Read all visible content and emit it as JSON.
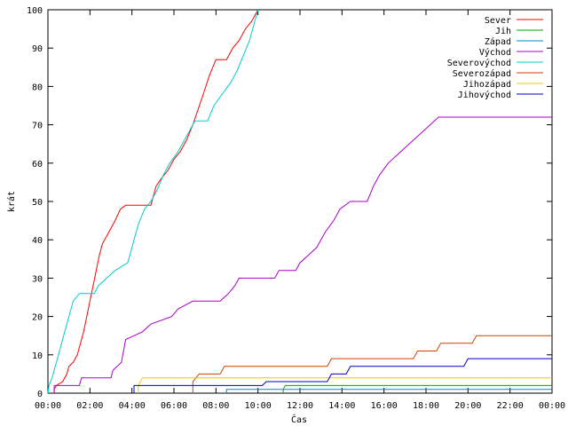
{
  "chart_data": {
    "type": "line",
    "title": "",
    "xlabel": "Čas",
    "ylabel": "krát",
    "xlim": [
      0,
      24
    ],
    "ylim": [
      0,
      100
    ],
    "x_ticks": [
      {
        "v": 0,
        "label": "00:00"
      },
      {
        "v": 2,
        "label": "02:00"
      },
      {
        "v": 4,
        "label": "04:00"
      },
      {
        "v": 6,
        "label": "06:00"
      },
      {
        "v": 8,
        "label": "08:00"
      },
      {
        "v": 10,
        "label": "10:00"
      },
      {
        "v": 12,
        "label": "12:00"
      },
      {
        "v": 14,
        "label": "14:00"
      },
      {
        "v": 16,
        "label": "16:00"
      },
      {
        "v": 18,
        "label": "18:00"
      },
      {
        "v": 20,
        "label": "20:00"
      },
      {
        "v": 22,
        "label": "22:00"
      },
      {
        "v": 24,
        "label": "00:00"
      }
    ],
    "y_ticks": [
      0,
      10,
      20,
      30,
      40,
      50,
      60,
      70,
      80,
      90,
      100
    ],
    "grid": false,
    "legend_position": "top-right",
    "series": [
      {
        "name": "Sever",
        "color": "#ff0000",
        "points": [
          [
            0.3,
            0
          ],
          [
            0.3,
            1
          ],
          [
            0.4,
            2
          ],
          [
            0.7,
            3
          ],
          [
            0.9,
            5
          ],
          [
            1.0,
            7
          ],
          [
            1.2,
            8
          ],
          [
            1.4,
            10
          ],
          [
            1.55,
            13
          ],
          [
            1.7,
            16
          ],
          [
            1.85,
            20
          ],
          [
            2.0,
            24
          ],
          [
            2.15,
            28
          ],
          [
            2.3,
            32
          ],
          [
            2.45,
            36
          ],
          [
            2.6,
            39
          ],
          [
            2.8,
            41
          ],
          [
            3.0,
            43
          ],
          [
            3.2,
            45
          ],
          [
            3.45,
            48
          ],
          [
            3.7,
            49
          ],
          [
            4.0,
            49
          ],
          [
            4.3,
            49
          ],
          [
            4.6,
            49
          ],
          [
            4.9,
            49
          ],
          [
            5.15,
            54
          ],
          [
            5.4,
            56
          ],
          [
            5.7,
            58
          ],
          [
            6.0,
            61
          ],
          [
            6.3,
            63
          ],
          [
            6.6,
            66
          ],
          [
            6.9,
            70
          ],
          [
            7.15,
            74
          ],
          [
            7.4,
            78
          ],
          [
            7.7,
            83
          ],
          [
            8.0,
            87
          ],
          [
            8.5,
            87
          ],
          [
            8.8,
            90
          ],
          [
            9.1,
            92
          ],
          [
            9.4,
            95
          ],
          [
            9.7,
            97
          ],
          [
            10.0,
            100
          ]
        ]
      },
      {
        "name": "Jih",
        "color": "#00aa00",
        "points": [
          [
            11.2,
            0
          ],
          [
            11.2,
            1
          ],
          [
            11.3,
            2
          ],
          [
            24,
            2
          ]
        ]
      },
      {
        "name": "Západ",
        "color": "#0088cc",
        "points": [
          [
            8.5,
            0
          ],
          [
            8.5,
            1
          ],
          [
            24,
            1
          ]
        ]
      },
      {
        "name": "Východ",
        "color": "#aa00cc",
        "points": [
          [
            0.3,
            0
          ],
          [
            0.3,
            2
          ],
          [
            1.5,
            2
          ],
          [
            1.6,
            4
          ],
          [
            3.0,
            4
          ],
          [
            3.1,
            6
          ],
          [
            3.5,
            8
          ],
          [
            3.7,
            14
          ],
          [
            4.5,
            16
          ],
          [
            4.9,
            18
          ],
          [
            5.9,
            20
          ],
          [
            6.2,
            22
          ],
          [
            6.9,
            24
          ],
          [
            8.2,
            24
          ],
          [
            8.6,
            26
          ],
          [
            8.9,
            28
          ],
          [
            9.1,
            30
          ],
          [
            10.8,
            30
          ],
          [
            11.0,
            32
          ],
          [
            11.8,
            32
          ],
          [
            12.0,
            34
          ],
          [
            12.4,
            36
          ],
          [
            12.8,
            38
          ],
          [
            13.2,
            42
          ],
          [
            13.6,
            45
          ],
          [
            13.9,
            48
          ],
          [
            14.4,
            50
          ],
          [
            15.2,
            50
          ],
          [
            15.5,
            54
          ],
          [
            15.8,
            57
          ],
          [
            16.2,
            60
          ],
          [
            16.6,
            62
          ],
          [
            17.0,
            64
          ],
          [
            17.4,
            66
          ],
          [
            17.8,
            68
          ],
          [
            18.2,
            70
          ],
          [
            18.6,
            72
          ],
          [
            24,
            72
          ]
        ]
      },
      {
        "name": "Severovýchod",
        "color": "#00cccc",
        "points": [
          [
            0,
            0
          ],
          [
            0.05,
            2
          ],
          [
            0.2,
            4
          ],
          [
            0.4,
            8
          ],
          [
            0.6,
            12
          ],
          [
            0.8,
            16
          ],
          [
            1.0,
            20
          ],
          [
            1.2,
            24
          ],
          [
            1.5,
            26
          ],
          [
            2.2,
            26
          ],
          [
            2.4,
            28
          ],
          [
            2.8,
            30
          ],
          [
            3.2,
            32
          ],
          [
            3.8,
            34
          ],
          [
            4.0,
            38
          ],
          [
            4.3,
            44
          ],
          [
            4.6,
            48
          ],
          [
            4.9,
            50
          ],
          [
            5.2,
            53
          ],
          [
            5.5,
            57
          ],
          [
            5.8,
            60
          ],
          [
            6.2,
            63
          ],
          [
            6.5,
            66
          ],
          [
            6.8,
            69
          ],
          [
            7.0,
            71
          ],
          [
            7.6,
            71
          ],
          [
            7.9,
            75
          ],
          [
            8.3,
            78
          ],
          [
            8.7,
            81
          ],
          [
            9.0,
            84
          ],
          [
            9.3,
            88
          ],
          [
            9.6,
            92
          ],
          [
            9.8,
            96
          ],
          [
            10.0,
            100
          ]
        ]
      },
      {
        "name": "Severozápad",
        "color": "#cc4400",
        "points": [
          [
            6.9,
            0
          ],
          [
            6.9,
            3
          ],
          [
            7.2,
            5
          ],
          [
            8.2,
            5
          ],
          [
            8.4,
            7
          ],
          [
            13.3,
            7
          ],
          [
            13.5,
            9
          ],
          [
            17.4,
            9
          ],
          [
            17.6,
            11
          ],
          [
            18.5,
            11
          ],
          [
            18.7,
            13
          ],
          [
            20.2,
            13
          ],
          [
            20.4,
            15
          ],
          [
            24,
            15
          ]
        ]
      },
      {
        "name": "Jihozápad",
        "color": "#eecc00",
        "points": [
          [
            4.3,
            0
          ],
          [
            4.3,
            2
          ],
          [
            4.5,
            4
          ],
          [
            24,
            4
          ]
        ]
      },
      {
        "name": "Jihovýchod",
        "color": "#0000cc",
        "points": [
          [
            4.1,
            0
          ],
          [
            4.1,
            2
          ],
          [
            10.2,
            2
          ],
          [
            10.4,
            3
          ],
          [
            13.3,
            3
          ],
          [
            13.5,
            5
          ],
          [
            14.2,
            5
          ],
          [
            14.4,
            7
          ],
          [
            19.8,
            7
          ],
          [
            20.0,
            9
          ],
          [
            24,
            9
          ]
        ]
      }
    ]
  }
}
